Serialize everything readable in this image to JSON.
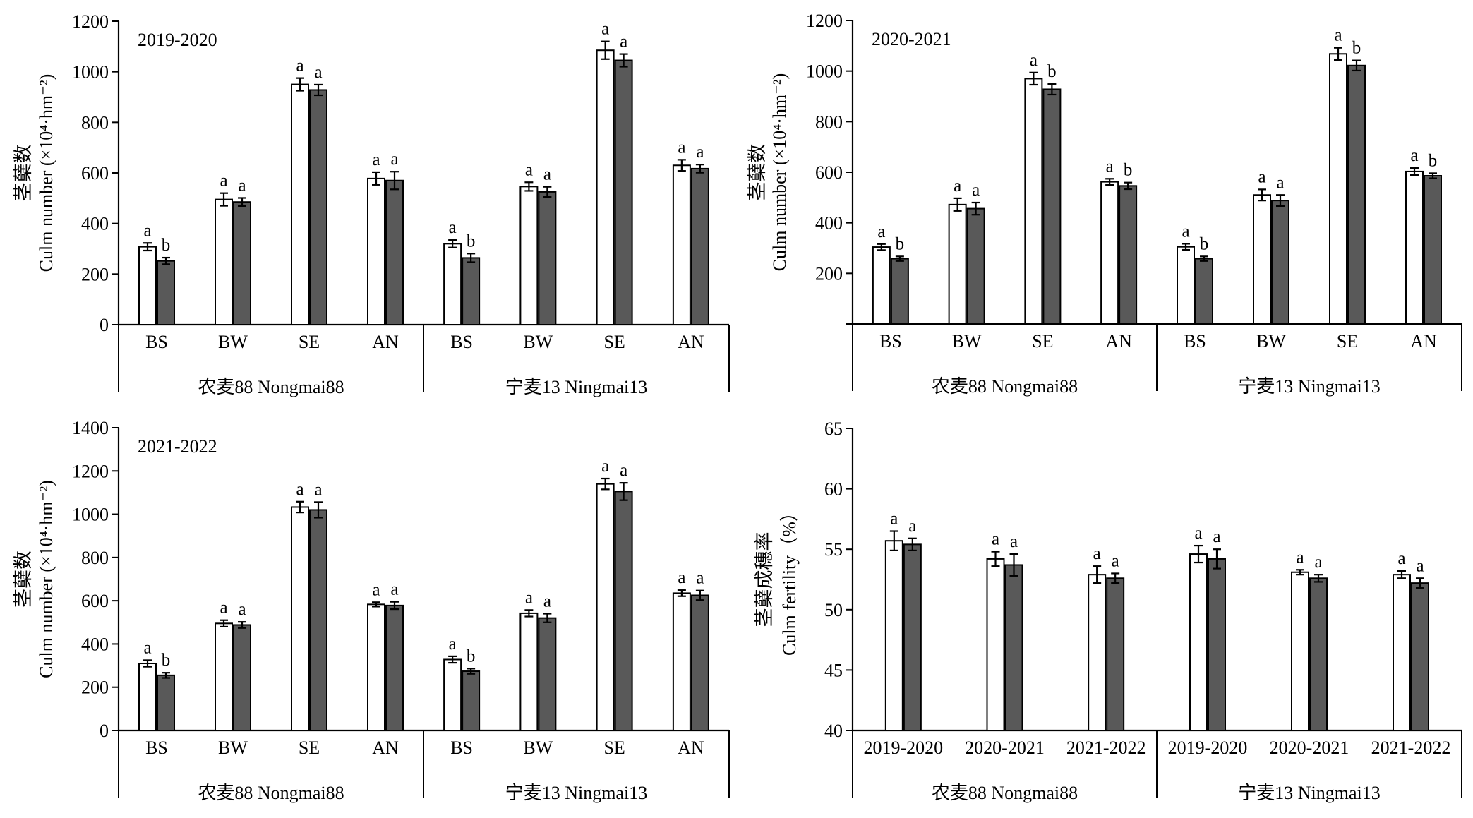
{
  "colors": {
    "treatment_1": "#ffffff",
    "treatment_2": "#595959",
    "stroke": "#000000"
  },
  "chart_data": [
    {
      "id": "p1",
      "type": "bar",
      "title": "2019-2020",
      "ylabel_cn": "茎蘖数",
      "ylabel_en": "Culm number (×10⁴·hm⁻²)",
      "ylim": [
        0,
        1200
      ],
      "yticks": [
        "0",
        "200",
        "400",
        "600",
        "800",
        "1000",
        "1200"
      ],
      "groups": [
        {
          "label": "农麦88 Nongmai88",
          "categories": [
            "BS",
            "BW",
            "SE",
            "AN"
          ],
          "values": [
            [
              308,
              252
            ],
            [
              495,
              485
            ],
            [
              950,
              928
            ],
            [
              578,
              570
            ]
          ],
          "errors": [
            [
              15,
              13
            ],
            [
              25,
              16
            ],
            [
              25,
              21
            ],
            [
              25,
              35
            ]
          ],
          "letters": [
            [
              "a",
              "b"
            ],
            [
              "a",
              "a"
            ],
            [
              "a",
              "a"
            ],
            [
              "a",
              "a"
            ]
          ]
        },
        {
          "label": "宁麦13 Ningmai13",
          "categories": [
            "BS",
            "BW",
            "SE",
            "AN"
          ],
          "values": [
            [
              320,
              264
            ],
            [
              546,
              525
            ],
            [
              1085,
              1045
            ],
            [
              630,
              617
            ]
          ],
          "errors": [
            [
              15,
              17
            ],
            [
              17,
              20
            ],
            [
              35,
              25
            ],
            [
              22,
              16
            ]
          ],
          "letters": [
            [
              "a",
              "b"
            ],
            [
              "a",
              "a"
            ],
            [
              "a",
              "a"
            ],
            [
              "a",
              "a"
            ]
          ]
        }
      ]
    },
    {
      "id": "p2",
      "type": "bar",
      "title": "2020-2021",
      "ylabel_cn": "茎蘖数",
      "ylabel_en": "Culm number (×10⁴·hm⁻²)",
      "ylim": [
        0,
        1200
      ],
      "yticks": [
        "",
        "200",
        "400",
        "600",
        "800",
        "1000",
        "1200"
      ],
      "groups": [
        {
          "label": "农麦88 Nongmai88",
          "categories": [
            "BS",
            "BW",
            "SE",
            "AN"
          ],
          "values": [
            [
              304,
              258
            ],
            [
              472,
              456
            ],
            [
              970,
              928
            ],
            [
              562,
              546
            ]
          ],
          "errors": [
            [
              12,
              9
            ],
            [
              25,
              24
            ],
            [
              24,
              21
            ],
            [
              12,
              13
            ]
          ],
          "letters": [
            [
              "a",
              "b"
            ],
            [
              "a",
              "a"
            ],
            [
              "a",
              "b"
            ],
            [
              "a",
              "b"
            ]
          ]
        },
        {
          "label": "宁麦13 Ningmai13",
          "categories": [
            "BS",
            "BW",
            "SE",
            "AN"
          ],
          "values": [
            [
              305,
              258
            ],
            [
              510,
              488
            ],
            [
              1068,
              1022
            ],
            [
              603,
              586
            ]
          ],
          "errors": [
            [
              12,
              9
            ],
            [
              22,
              22
            ],
            [
              24,
              20
            ],
            [
              14,
              10
            ]
          ],
          "letters": [
            [
              "a",
              "b"
            ],
            [
              "a",
              "a"
            ],
            [
              "a",
              "b"
            ],
            [
              "a",
              "b"
            ]
          ]
        }
      ]
    },
    {
      "id": "p3",
      "type": "bar",
      "title": "2021-2022",
      "ylabel_cn": "茎蘖数",
      "ylabel_en": "Culm number (×10⁴·hm⁻²)",
      "ylim": [
        0,
        1400
      ],
      "yticks": [
        "0",
        "200",
        "400",
        "600",
        "800",
        "1000",
        "1200",
        "1400"
      ],
      "groups": [
        {
          "label": "农麦88 Nongmai88",
          "categories": [
            "BS",
            "BW",
            "SE",
            "AN"
          ],
          "values": [
            [
              310,
              255
            ],
            [
              495,
              488
            ],
            [
              1033,
              1020
            ],
            [
              583,
              578
            ]
          ],
          "errors": [
            [
              15,
              12
            ],
            [
              15,
              14
            ],
            [
              25,
              36
            ],
            [
              10,
              17
            ]
          ],
          "letters": [
            [
              "a",
              "b"
            ],
            [
              "a",
              "a"
            ],
            [
              "a",
              "a"
            ],
            [
              "a",
              "a"
            ]
          ]
        },
        {
          "label": "宁麦13 Ningmai13",
          "categories": [
            "BS",
            "BW",
            "SE",
            "AN"
          ],
          "values": [
            [
              328,
              274
            ],
            [
              542,
              520
            ],
            [
              1140,
              1105
            ],
            [
              635,
              625
            ]
          ],
          "errors": [
            [
              15,
              12
            ],
            [
              15,
              20
            ],
            [
              25,
              40
            ],
            [
              14,
              22
            ]
          ],
          "letters": [
            [
              "a",
              "b"
            ],
            [
              "a",
              "a"
            ],
            [
              "a",
              "a"
            ],
            [
              "a",
              "a"
            ]
          ]
        }
      ]
    },
    {
      "id": "p4",
      "type": "bar",
      "title": "",
      "ylabel_cn": "茎蘖成穗率",
      "ylabel_en": "Culm fertility（%）",
      "ylim": [
        40,
        65
      ],
      "yticks": [
        "40",
        "45",
        "50",
        "55",
        "60",
        "65"
      ],
      "groups": [
        {
          "label": "农麦88 Nongmai88",
          "categories": [
            "2019-2020",
            "2020-2021",
            "2021-2022"
          ],
          "values": [
            [
              55.7,
              55.4
            ],
            [
              54.2,
              53.7
            ],
            [
              52.9,
              52.6
            ]
          ],
          "errors": [
            [
              0.8,
              0.5
            ],
            [
              0.6,
              0.9
            ],
            [
              0.7,
              0.4
            ]
          ],
          "letters": [
            [
              "a",
              "a"
            ],
            [
              "a",
              "a"
            ],
            [
              "a",
              "a"
            ]
          ]
        },
        {
          "label": "宁麦13 Ningmai13",
          "categories": [
            "2019-2020",
            "2020-2021",
            "2021-2022"
          ],
          "values": [
            [
              54.6,
              54.2
            ],
            [
              53.1,
              52.6
            ],
            [
              52.9,
              52.2
            ]
          ],
          "errors": [
            [
              0.7,
              0.8
            ],
            [
              0.2,
              0.3
            ],
            [
              0.3,
              0.4
            ]
          ],
          "letters": [
            [
              "a",
              "a"
            ],
            [
              "a",
              "a"
            ],
            [
              "a",
              "a"
            ]
          ]
        }
      ]
    }
  ]
}
